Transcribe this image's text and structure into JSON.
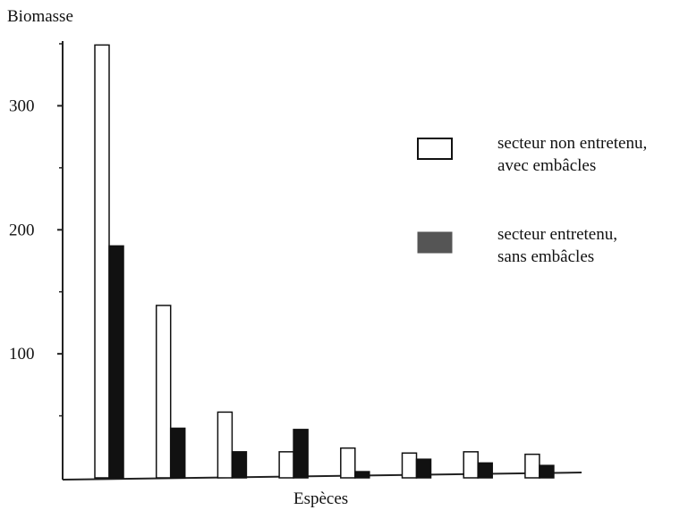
{
  "chart_data": {
    "type": "bar",
    "ylabel": "Biomasse",
    "xlabel": "Espèces",
    "ylim": [
      0,
      350
    ],
    "yticks": [
      100,
      200,
      300
    ],
    "categories": [
      "",
      "",
      "",
      "",
      "",
      "",
      "",
      ""
    ],
    "series": [
      {
        "name": "secteur non entretenu, avec embâcles",
        "fill": "#ffffff",
        "values": [
          349,
          139,
          53,
          21,
          24,
          20,
          21,
          19
        ]
      },
      {
        "name": "secteur entretenu, sans embâcles",
        "fill": "#111111",
        "values": [
          187,
          40,
          21,
          39,
          5,
          15,
          12,
          10
        ]
      }
    ],
    "legend": [
      {
        "line1": "secteur non entretenu,",
        "line2": "avec embâcles",
        "swatch": "#ffffff"
      },
      {
        "line1": "secteur entretenu,",
        "line2": "sans embâcles",
        "swatch": "#555555"
      }
    ],
    "grid": false
  }
}
